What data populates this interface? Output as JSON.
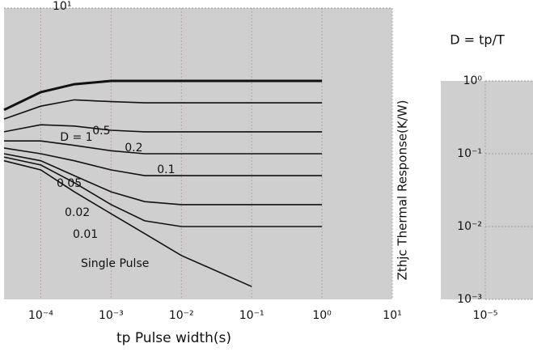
{
  "chart_data": [
    {
      "type": "line",
      "annotation": "D = tp/T",
      "xlabel": "tp Pulse width(s)",
      "xscale": "log",
      "yscale": "log",
      "grid": true,
      "x": [
        3e-05,
        0.0001,
        0.0003,
        0.001,
        0.003,
        0.01,
        0.1,
        1
      ],
      "xlim": [
        3e-05,
        10
      ],
      "ylim": [
        0.001,
        10
      ],
      "xticks": [
        {
          "value": 0.0001,
          "label": "10⁻⁴"
        },
        {
          "value": 0.001,
          "label": "10⁻³"
        },
        {
          "value": 0.01,
          "label": "10⁻²"
        },
        {
          "value": 0.1,
          "label": "10⁻¹"
        },
        {
          "value": 1,
          "label": "10⁰"
        },
        {
          "value": 10,
          "label": "10¹"
        }
      ],
      "yticks": [
        {
          "value": 10,
          "label": "10¹"
        }
      ],
      "series": [
        {
          "name": "D = 1",
          "color": "#111111",
          "values": [
            0.4,
            0.7,
            0.9,
            1,
            1,
            1,
            1,
            1
          ]
        },
        {
          "name": "0.5",
          "color": "#111111",
          "values": [
            0.3,
            0.45,
            0.55,
            0.52,
            0.5,
            0.5,
            0.5,
            0.5
          ]
        },
        {
          "name": "0.2",
          "color": "#111111",
          "values": [
            0.2,
            0.25,
            0.24,
            0.21,
            0.2,
            0.2,
            0.2,
            0.2
          ]
        },
        {
          "name": "0.1",
          "color": "#111111",
          "values": [
            0.15,
            0.15,
            0.13,
            0.11,
            0.1,
            0.1,
            0.1,
            0.1
          ]
        },
        {
          "name": "0.05",
          "color": "#111111",
          "values": [
            0.12,
            0.1,
            0.08,
            0.06,
            0.05,
            0.05,
            0.05,
            0.05
          ]
        },
        {
          "name": "0.02",
          "color": "#111111",
          "values": [
            0.1,
            0.08,
            0.05,
            0.03,
            0.022,
            0.02,
            0.02,
            0.02
          ]
        },
        {
          "name": "0.01",
          "color": "#111111",
          "values": [
            0.09,
            0.07,
            0.04,
            0.02,
            0.012,
            0.01,
            0.01,
            0.01
          ]
        },
        {
          "name": "Single Pulse",
          "color": "#111111",
          "values": [
            0.08,
            0.06,
            0.03,
            0.015,
            0.008,
            0.004,
            0.0015,
            null
          ]
        }
      ]
    },
    {
      "type": "axes",
      "ylabel": "Zthjc Thermal Response(K/W)",
      "xscale": "log",
      "yscale": "log",
      "grid": true,
      "xlim": [
        1e-05,
        5e-05
      ],
      "ylim": [
        0.001,
        1
      ],
      "xticks": [
        {
          "value": 1e-05,
          "label": "10⁻⁵"
        }
      ],
      "yticks": [
        {
          "value": 1,
          "label": "10⁰"
        },
        {
          "value": 0.1,
          "label": "10⁻¹"
        },
        {
          "value": 0.01,
          "label": "10⁻²"
        },
        {
          "value": 0.001,
          "label": "10⁻³"
        }
      ]
    }
  ]
}
